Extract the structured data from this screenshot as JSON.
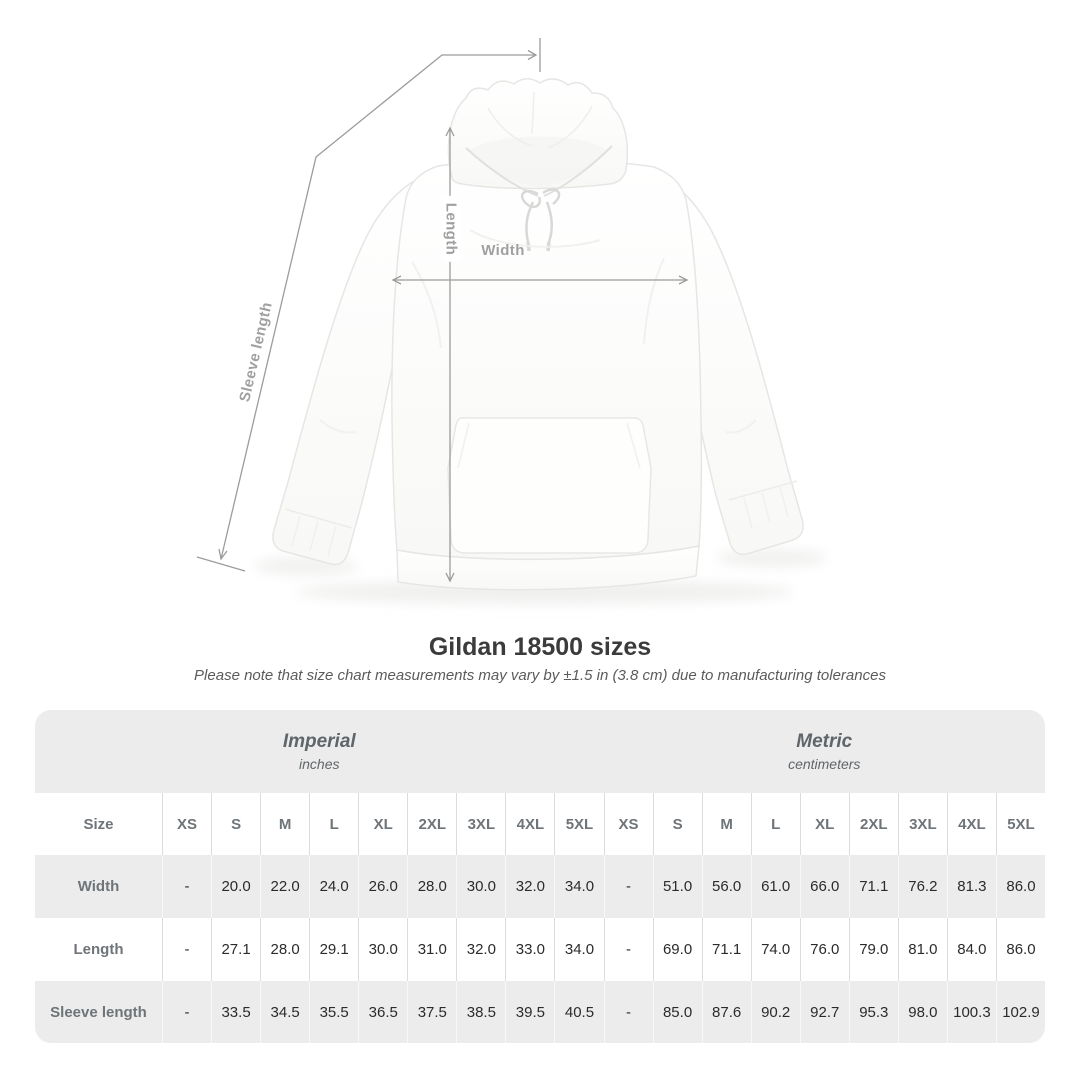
{
  "title": "Gildan 18500 sizes",
  "subtitle": "Please note that size chart measurements may vary by ±1.5 in (3.8 cm) due to manufacturing tolerances",
  "diagram": {
    "product": "white pullover hoodie, front view",
    "labels": {
      "length": "Length",
      "width": "Width",
      "sleeve_length": "Sleeve length"
    }
  },
  "chart_data": {
    "type": "table",
    "title": "Gildan 18500 sizes",
    "corner_label": "Size",
    "groups": [
      {
        "label": "Imperial",
        "unit": "inches"
      },
      {
        "label": "Metric",
        "unit": "centimeters"
      }
    ],
    "sizes": [
      "XS",
      "S",
      "M",
      "L",
      "XL",
      "2XL",
      "3XL",
      "4XL",
      "5XL"
    ],
    "rows": [
      {
        "label": "Width",
        "imperial": [
          "-",
          "20.0",
          "22.0",
          "24.0",
          "26.0",
          "28.0",
          "30.0",
          "32.0",
          "34.0"
        ],
        "metric": [
          "-",
          "51.0",
          "56.0",
          "61.0",
          "66.0",
          "71.1",
          "76.2",
          "81.3",
          "86.0"
        ]
      },
      {
        "label": "Length",
        "imperial": [
          "-",
          "27.1",
          "28.0",
          "29.1",
          "30.0",
          "31.0",
          "32.0",
          "33.0",
          "34.0"
        ],
        "metric": [
          "-",
          "69.0",
          "71.1",
          "74.0",
          "76.0",
          "79.0",
          "81.0",
          "84.0",
          "86.0"
        ]
      },
      {
        "label": "Sleeve length",
        "imperial": [
          "-",
          "33.5",
          "34.5",
          "35.5",
          "36.5",
          "37.5",
          "38.5",
          "39.5",
          "40.5"
        ],
        "metric": [
          "-",
          "85.0",
          "87.6",
          "90.2",
          "92.7",
          "95.3",
          "98.0",
          "100.3",
          "102.9"
        ]
      }
    ]
  },
  "colors": {
    "page_bg": "#ffffff",
    "band_bg": "#ececec",
    "row_alt_bg": "#ececec",
    "separator_on_white": "#dcdcdc",
    "separator_on_gray": "#f8f8f8",
    "heading_text": "#3b3b3b",
    "muted_text": "#6e7478",
    "value_text": "#2b2b2b",
    "annotation": "#9c9c9c"
  }
}
